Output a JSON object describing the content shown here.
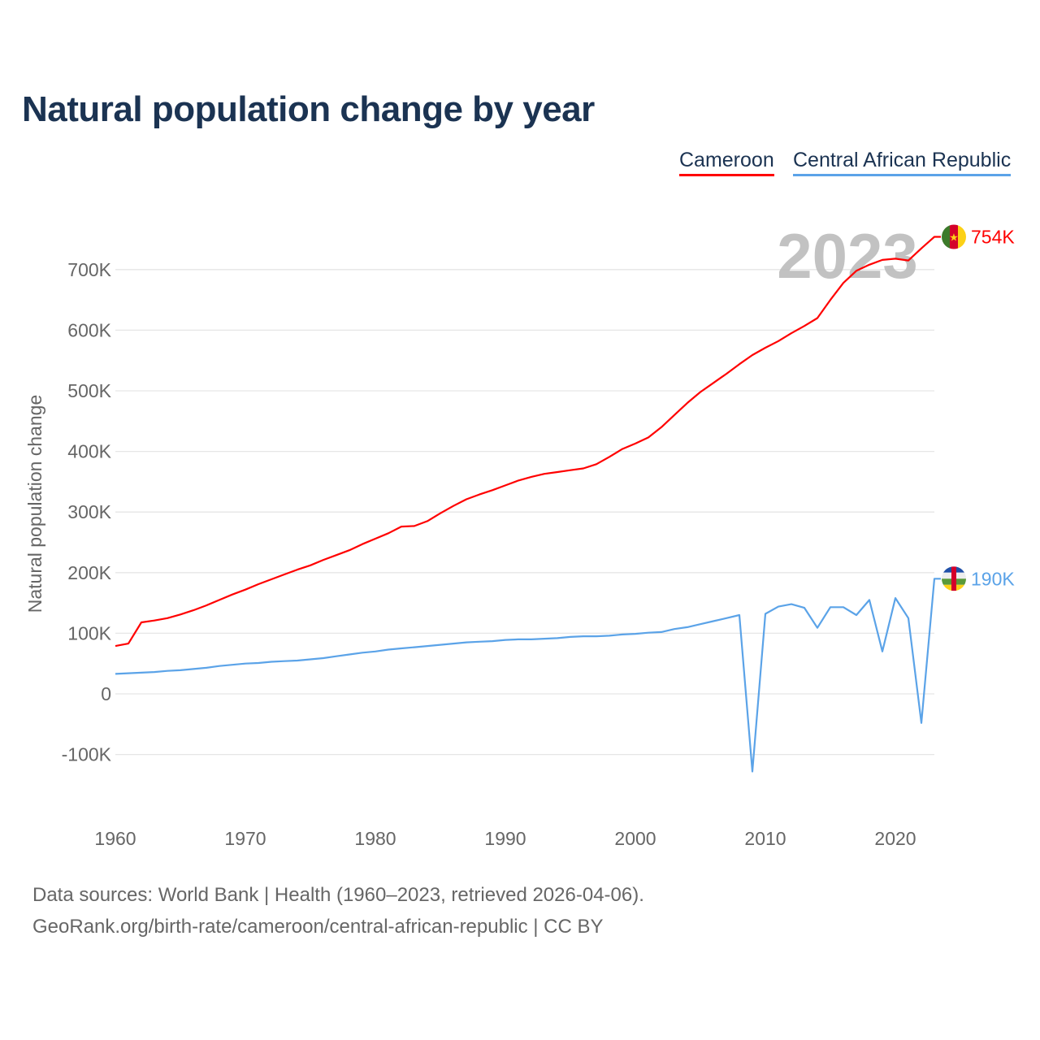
{
  "chart_data": {
    "type": "line",
    "title": "Natural population change by year",
    "xlabel": "",
    "ylabel": "Natural population change",
    "xlim": [
      1960,
      2023
    ],
    "ylim": [
      -170000,
      770000
    ],
    "x_ticks": [
      1960,
      1970,
      1980,
      1990,
      2000,
      2010,
      2020
    ],
    "x_tick_labels": [
      "1960",
      "1970",
      "1980",
      "1990",
      "2000",
      "2010",
      "2020"
    ],
    "y_ticks": [
      -100000,
      0,
      100000,
      200000,
      300000,
      400000,
      500000,
      600000,
      700000
    ],
    "y_tick_labels": [
      "-100K",
      "0",
      "100K",
      "200K",
      "300K",
      "400K",
      "500K",
      "600K",
      "700K"
    ],
    "grid": true,
    "legend_position": "top-right",
    "year_watermark": "2023",
    "x": [
      1960,
      1961,
      1962,
      1963,
      1964,
      1965,
      1966,
      1967,
      1968,
      1969,
      1970,
      1971,
      1972,
      1973,
      1974,
      1975,
      1976,
      1977,
      1978,
      1979,
      1980,
      1981,
      1982,
      1983,
      1984,
      1985,
      1986,
      1987,
      1988,
      1989,
      1990,
      1991,
      1992,
      1993,
      1994,
      1995,
      1996,
      1997,
      1998,
      1999,
      2000,
      2001,
      2002,
      2003,
      2004,
      2005,
      2006,
      2007,
      2008,
      2009,
      2010,
      2011,
      2012,
      2013,
      2014,
      2015,
      2016,
      2017,
      2018,
      2019,
      2020,
      2021,
      2022,
      2023
    ],
    "series": [
      {
        "name": "Cameroon",
        "color": "#ff0000",
        "end_label": "754K",
        "values": [
          79000,
          83000,
          118000,
          121000,
          125000,
          131000,
          138000,
          146000,
          155000,
          164000,
          172000,
          181000,
          189000,
          197000,
          205000,
          212000,
          221000,
          229000,
          237000,
          247000,
          256000,
          265000,
          276000,
          277000,
          285000,
          298000,
          310000,
          321000,
          329000,
          336000,
          344000,
          352000,
          358000,
          363000,
          366000,
          369000,
          372000,
          379000,
          391000,
          404000,
          413000,
          423000,
          440000,
          460000,
          480000,
          498000,
          513000,
          528000,
          544000,
          559000,
          571000,
          582000,
          595000,
          607000,
          620000,
          650000,
          678000,
          698000,
          708000,
          716000,
          718000,
          715000,
          735000,
          754000
        ]
      },
      {
        "name": "Central African Republic",
        "color": "#5ba3e8",
        "end_label": "190K",
        "values": [
          33000,
          34000,
          35000,
          36000,
          38000,
          39000,
          41000,
          43000,
          46000,
          48000,
          50000,
          51000,
          53000,
          54000,
          55000,
          57000,
          59000,
          62000,
          65000,
          68000,
          70000,
          73000,
          75000,
          77000,
          79000,
          81000,
          83000,
          85000,
          86000,
          87000,
          89000,
          90000,
          90000,
          91000,
          92000,
          94000,
          95000,
          95000,
          96000,
          98000,
          99000,
          101000,
          102000,
          107000,
          110000,
          115000,
          120000,
          125000,
          130000,
          -128000,
          132000,
          144000,
          148000,
          142000,
          109000,
          143000,
          143000,
          130000,
          155000,
          70000,
          158000,
          125000,
          -48000,
          190000
        ]
      }
    ]
  },
  "footer": {
    "line1": "Data sources: World Bank | Health (1960–2023, retrieved 2026-04-06).",
    "line2": "GeoRank.org/birth-rate/cameroon/central-african-republic | CC BY"
  }
}
